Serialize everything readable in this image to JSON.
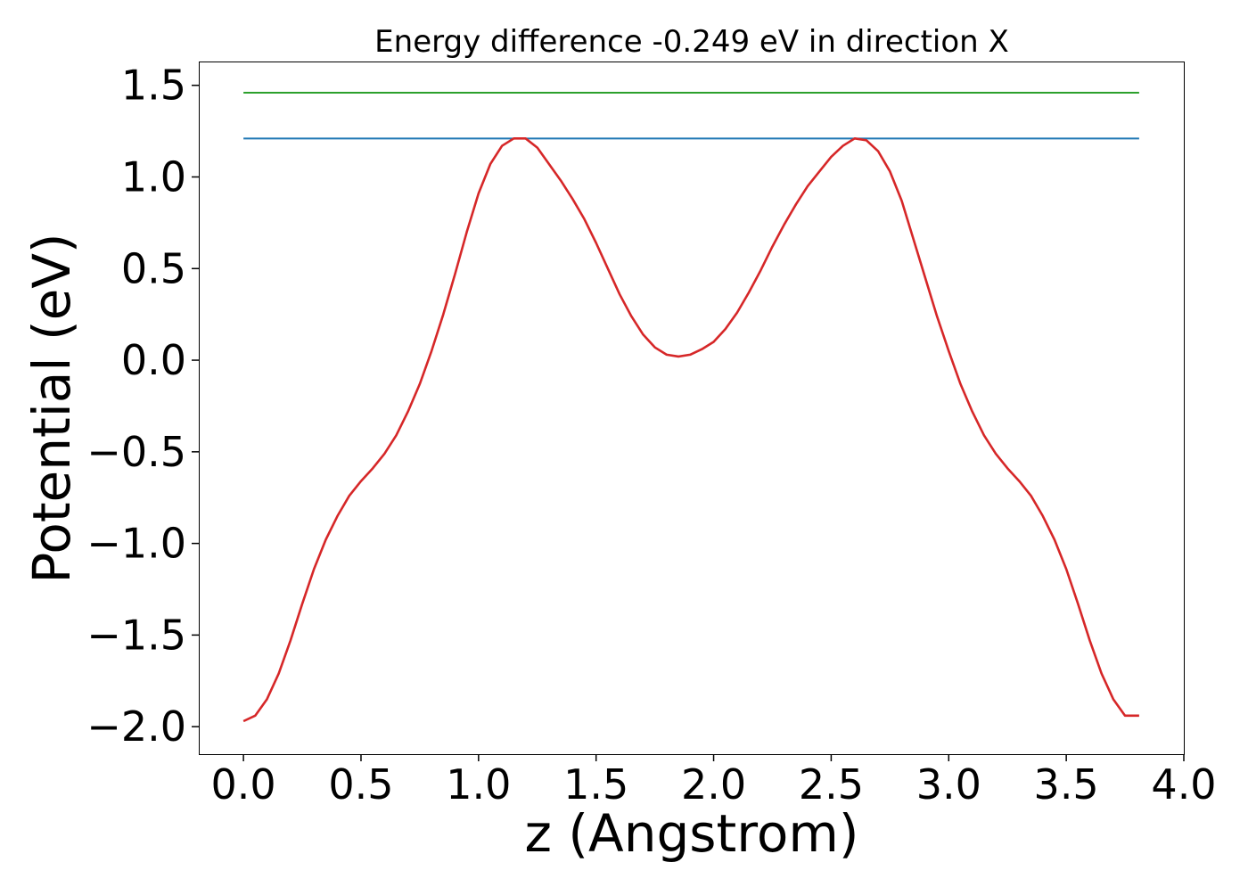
{
  "chart_data": {
    "type": "line",
    "title": "Energy difference -0.249 eV in direction X",
    "xlabel": "z (Angstrom)",
    "ylabel": "Potential (eV)",
    "xlim": [
      -0.19,
      4.0
    ],
    "ylim": [
      -2.15,
      1.63
    ],
    "xticks": [
      0.0,
      0.5,
      1.0,
      1.5,
      2.0,
      2.5,
      3.0,
      3.5,
      4.0
    ],
    "xtick_labels": [
      "0.0",
      "0.5",
      "1.0",
      "1.5",
      "2.0",
      "2.5",
      "3.0",
      "3.5",
      "4.0"
    ],
    "yticks": [
      -2.0,
      -1.5,
      -1.0,
      -0.5,
      0.0,
      0.5,
      1.0,
      1.5
    ],
    "ytick_labels": [
      "−2.0",
      "−1.5",
      "−1.0",
      "−0.5",
      "0.0",
      "0.5",
      "1.0",
      "1.5"
    ],
    "grid": false,
    "legend": "none",
    "series": [
      {
        "color": "#2ca02c",
        "x": [
          0.0,
          3.81
        ],
        "y": [
          1.46,
          1.46
        ]
      },
      {
        "color": "#1f77b4",
        "x": [
          0.0,
          3.81
        ],
        "y": [
          1.21,
          1.21
        ]
      },
      {
        "color": "#d62728",
        "x": [
          0.0,
          0.05,
          0.1,
          0.15,
          0.2,
          0.25,
          0.3,
          0.35,
          0.4,
          0.45,
          0.5,
          0.55,
          0.6,
          0.65,
          0.7,
          0.75,
          0.8,
          0.85,
          0.9,
          0.95,
          1.0,
          1.05,
          1.1,
          1.15,
          1.2,
          1.25,
          1.3,
          1.35,
          1.4,
          1.45,
          1.5,
          1.55,
          1.6,
          1.65,
          1.7,
          1.75,
          1.8,
          1.85,
          1.9,
          1.95,
          2.0,
          2.05,
          2.1,
          2.15,
          2.2,
          2.25,
          2.3,
          2.35,
          2.4,
          2.45,
          2.5,
          2.55,
          2.6,
          2.65,
          2.7,
          2.75,
          2.8,
          2.85,
          2.9,
          2.95,
          3.0,
          3.05,
          3.1,
          3.15,
          3.2,
          3.25,
          3.3,
          3.35,
          3.4,
          3.45,
          3.5,
          3.55,
          3.6,
          3.65,
          3.7,
          3.75,
          3.81
        ],
        "y": [
          -1.97,
          -1.94,
          -1.85,
          -1.71,
          -1.53,
          -1.33,
          -1.14,
          -0.98,
          -0.85,
          -0.74,
          -0.66,
          -0.59,
          -0.51,
          -0.41,
          -0.28,
          -0.13,
          0.05,
          0.25,
          0.47,
          0.7,
          0.91,
          1.07,
          1.17,
          1.21,
          1.21,
          1.16,
          1.07,
          0.98,
          0.88,
          0.77,
          0.64,
          0.5,
          0.36,
          0.24,
          0.14,
          0.07,
          0.03,
          0.02,
          0.03,
          0.06,
          0.1,
          0.17,
          0.26,
          0.37,
          0.49,
          0.62,
          0.74,
          0.85,
          0.95,
          1.03,
          1.11,
          1.17,
          1.21,
          1.2,
          1.14,
          1.03,
          0.87,
          0.66,
          0.45,
          0.24,
          0.05,
          -0.13,
          -0.28,
          -0.41,
          -0.51,
          -0.59,
          -0.66,
          -0.74,
          -0.85,
          -0.98,
          -1.14,
          -1.33,
          -1.53,
          -1.71,
          -1.85,
          -1.94,
          -1.94
        ]
      }
    ]
  }
}
